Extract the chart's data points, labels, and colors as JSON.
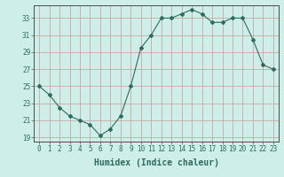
{
  "x": [
    0,
    1,
    2,
    3,
    4,
    5,
    6,
    7,
    8,
    9,
    10,
    11,
    12,
    13,
    14,
    15,
    16,
    17,
    18,
    19,
    20,
    21,
    22,
    23
  ],
  "y": [
    25,
    24,
    22.5,
    21.5,
    21,
    20.5,
    19.2,
    20,
    21.5,
    25,
    29.5,
    31,
    33,
    33,
    33.5,
    34,
    33.5,
    32.5,
    32.5,
    33,
    33,
    30.5,
    27.5,
    27
  ],
  "line_color": "#2e6b5e",
  "marker": "D",
  "marker_size": 2.0,
  "bg_color": "#ceeee8",
  "grid_color": "#c8a8a8",
  "xlabel": "Humidex (Indice chaleur)",
  "xlim": [
    -0.5,
    23.5
  ],
  "ylim": [
    18.5,
    34.5
  ],
  "yticks": [
    19,
    21,
    23,
    25,
    27,
    29,
    31,
    33
  ],
  "xticks": [
    0,
    1,
    2,
    3,
    4,
    5,
    6,
    7,
    8,
    9,
    10,
    11,
    12,
    13,
    14,
    15,
    16,
    17,
    18,
    19,
    20,
    21,
    22,
    23
  ],
  "tick_color": "#2e6b5e",
  "axis_color": "#4a4a4a",
  "label_fontsize": 7.0,
  "tick_fontsize": 5.5
}
